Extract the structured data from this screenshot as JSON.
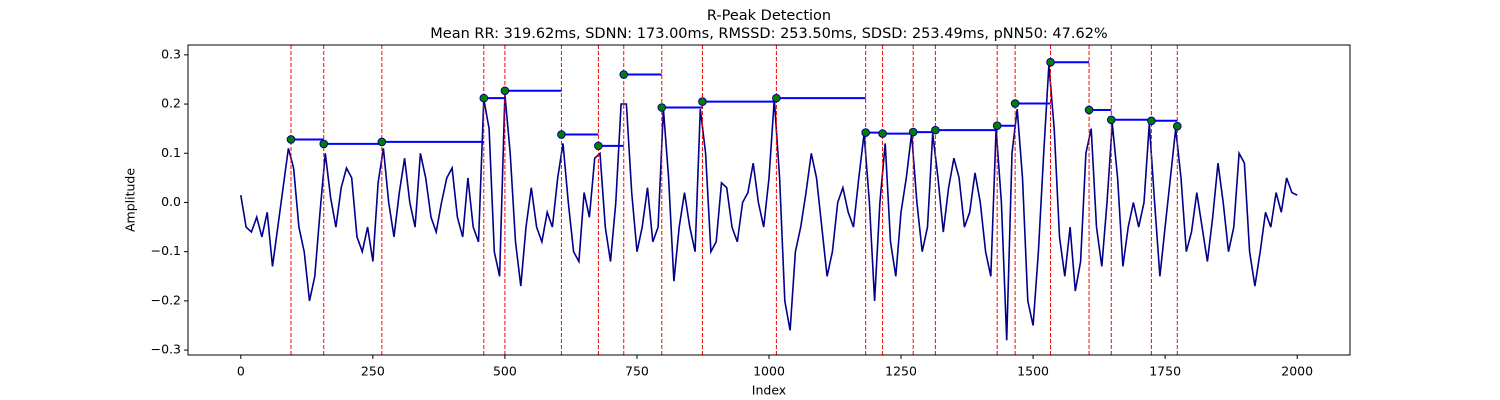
{
  "chart_data": {
    "type": "line",
    "title": "R-Peak Detection",
    "subtitle": "Mean RR: 319.62ms, SDNN: 173.00ms, RMSSD: 253.50ms, SDSD: 253.49ms, pNN50: 47.62%",
    "xlabel": "Index",
    "ylabel": "Amplitude",
    "xlim": [
      -100,
      2100
    ],
    "ylim": [
      -0.31,
      0.32
    ],
    "xticks": [
      0,
      250,
      500,
      750,
      1000,
      1250,
      1500,
      1750,
      2000
    ],
    "yticks": [
      {
        "value": -0.3,
        "label": "−0.3"
      },
      {
        "value": -0.2,
        "label": "−0.2"
      },
      {
        "value": -0.1,
        "label": "−0.1"
      },
      {
        "value": 0,
        "label": "0.0"
      },
      0.1,
      0.2,
      0.3
    ],
    "signal": {
      "color": "#00008b",
      "x": [
        0,
        10,
        20,
        30,
        40,
        50,
        60,
        70,
        80,
        90,
        100,
        110,
        120,
        130,
        140,
        150,
        160,
        170,
        180,
        190,
        200,
        210,
        220,
        230,
        240,
        250,
        260,
        270,
        280,
        290,
        300,
        310,
        320,
        330,
        340,
        350,
        360,
        370,
        380,
        390,
        400,
        410,
        420,
        430,
        440,
        450,
        460,
        470,
        480,
        490,
        500,
        510,
        520,
        530,
        540,
        550,
        560,
        570,
        580,
        590,
        600,
        610,
        620,
        630,
        640,
        650,
        660,
        670,
        680,
        690,
        700,
        710,
        720,
        730,
        740,
        750,
        760,
        770,
        780,
        790,
        800,
        810,
        820,
        830,
        840,
        850,
        860,
        870,
        880,
        890,
        900,
        910,
        920,
        930,
        940,
        950,
        960,
        970,
        980,
        990,
        1000,
        1010,
        1020,
        1030,
        1040,
        1050,
        1060,
        1070,
        1080,
        1090,
        1100,
        1110,
        1120,
        1130,
        1140,
        1150,
        1160,
        1170,
        1180,
        1190,
        1200,
        1210,
        1220,
        1230,
        1240,
        1250,
        1260,
        1270,
        1280,
        1290,
        1300,
        1310,
        1320,
        1330,
        1340,
        1350,
        1360,
        1370,
        1380,
        1390,
        1400,
        1410,
        1420,
        1430,
        1440,
        1450,
        1460,
        1470,
        1480,
        1490,
        1500,
        1510,
        1520,
        1530,
        1540,
        1550,
        1560,
        1570,
        1580,
        1590,
        1600,
        1610,
        1620,
        1630,
        1640,
        1650,
        1660,
        1670,
        1680,
        1690,
        1700,
        1710,
        1720,
        1730,
        1740,
        1750,
        1760,
        1770,
        1780,
        1790,
        1800,
        1810,
        1820,
        1830,
        1840,
        1850,
        1860,
        1870,
        1880,
        1890,
        1900,
        1910,
        1920,
        1930,
        1940,
        1950,
        1960,
        1970,
        1980,
        1990,
        2000
      ],
      "values": [
        0.015,
        -0.05,
        -0.06,
        -0.03,
        -0.07,
        -0.02,
        -0.13,
        -0.05,
        0.03,
        0.11,
        0.07,
        -0.05,
        -0.1,
        -0.2,
        -0.15,
        -0.02,
        0.1,
        0.01,
        -0.05,
        0.03,
        0.07,
        0.05,
        -0.07,
        -0.1,
        -0.05,
        -0.12,
        0.04,
        0.11,
        0.0,
        -0.07,
        0.02,
        0.09,
        0.0,
        -0.05,
        0.1,
        0.05,
        -0.03,
        -0.06,
        0.0,
        0.05,
        0.07,
        -0.03,
        -0.07,
        0.05,
        -0.05,
        -0.08,
        0.21,
        0.15,
        -0.1,
        -0.15,
        0.22,
        0.1,
        -0.08,
        -0.17,
        -0.05,
        0.03,
        -0.05,
        -0.08,
        -0.02,
        -0.05,
        0.05,
        0.12,
        0.0,
        -0.1,
        -0.12,
        0.02,
        -0.03,
        0.09,
        0.1,
        -0.05,
        -0.12,
        0.0,
        0.2,
        0.2,
        0.02,
        -0.1,
        -0.05,
        0.03,
        -0.08,
        -0.05,
        0.19,
        0.05,
        -0.16,
        -0.05,
        0.02,
        -0.05,
        -0.1,
        0.19,
        0.1,
        -0.1,
        -0.08,
        0.04,
        0.03,
        -0.05,
        -0.08,
        0.0,
        0.02,
        0.08,
        0.0,
        -0.05,
        0.05,
        0.21,
        0.05,
        -0.2,
        -0.26,
        -0.1,
        -0.05,
        0.02,
        0.1,
        0.05,
        -0.05,
        -0.15,
        -0.1,
        0.0,
        0.03,
        -0.02,
        -0.05,
        0.05,
        0.14,
        0.0,
        -0.2,
        0.0,
        0.12,
        -0.08,
        -0.15,
        -0.02,
        0.05,
        0.14,
        0.0,
        -0.1,
        -0.05,
        0.14,
        0.05,
        -0.06,
        0.03,
        0.09,
        0.05,
        -0.05,
        -0.02,
        0.06,
        0.0,
        -0.1,
        -0.15,
        0.15,
        0.0,
        -0.28,
        0.1,
        0.19,
        0.05,
        -0.2,
        -0.25,
        -0.1,
        0.1,
        0.28,
        0.15,
        -0.07,
        -0.15,
        -0.05,
        -0.18,
        -0.12,
        0.1,
        0.15,
        -0.05,
        -0.13,
        0.0,
        0.16,
        0.05,
        -0.13,
        -0.05,
        0.0,
        -0.05,
        0.0,
        0.16,
        0.0,
        -0.15,
        -0.05,
        0.05,
        0.15,
        0.05,
        -0.1,
        -0.06,
        0.02,
        -0.05,
        -0.12,
        -0.03,
        0.08,
        0.0,
        -0.1,
        -0.05,
        0.1,
        0.08,
        -0.1,
        -0.17,
        -0.1,
        -0.02,
        -0.05,
        0.02,
        -0.02,
        0.05,
        0.02,
        0.015
      ]
    },
    "peaks": {
      "color": "green",
      "edge_color": "#00008b",
      "x": [
        95,
        157,
        267,
        460,
        500,
        607,
        677,
        725,
        797,
        874,
        1014,
        1183,
        1215,
        1273,
        1315,
        1432,
        1466,
        1533,
        1606,
        1648,
        1724,
        1773
      ],
      "values": [
        0.128,
        0.119,
        0.123,
        0.212,
        0.227,
        0.138,
        0.115,
        0.26,
        0.193,
        0.205,
        0.212,
        0.142,
        0.14,
        0.143,
        0.147,
        0.156,
        0.201,
        0.285,
        0.188,
        0.168,
        0.166,
        0.155
      ]
    },
    "peak_line_color": "red",
    "rr_line_color": "blue"
  }
}
